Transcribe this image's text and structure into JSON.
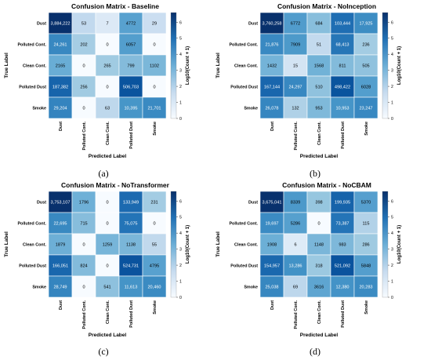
{
  "chart_data": [
    {
      "type": "heatmap",
      "title": "Confusion Matrix - Baseline",
      "caption": "(a)",
      "xlabel": "Predicted Label",
      "ylabel": "True Label",
      "x_categories": [
        "Dust",
        "Polluted Cont.",
        "Clean Cont.",
        "Polluted Dust",
        "Smoke"
      ],
      "y_categories": [
        "Dust",
        "Polluted Cont.",
        "Clean Cont.",
        "Polluted Dust",
        "Smoke"
      ],
      "values": [
        [
          3884222,
          53,
          7,
          4772,
          29
        ],
        [
          24261,
          202,
          0,
          6057,
          0
        ],
        [
          2165,
          0,
          265,
          799,
          1102
        ],
        [
          187382,
          256,
          0,
          506703,
          0
        ],
        [
          29204,
          0,
          63,
          10395,
          21701
        ]
      ],
      "labels": [
        [
          "3,884,222",
          "53",
          "7",
          "4772",
          "29"
        ],
        [
          "24,261",
          "202",
          "0",
          "6057",
          "0"
        ],
        [
          "2165",
          "0",
          "265",
          "799",
          "1102"
        ],
        [
          "187,382",
          "256",
          "0",
          "506,703",
          "0"
        ],
        [
          "29,204",
          "0",
          "63",
          "10,395",
          "21,701"
        ]
      ],
      "colorbar": {
        "label": "Log10(Count + 1)",
        "min": 0,
        "max": 6.6,
        "ticks": [
          "0",
          "1",
          "2",
          "3",
          "4",
          "5",
          "6"
        ]
      }
    },
    {
      "type": "heatmap",
      "title": "Confusion Matrix - NoInception",
      "caption": "(b)",
      "xlabel": "Predicted Label",
      "ylabel": "True Label",
      "x_categories": [
        "Dust",
        "Polluted Cont.",
        "Clean Cont.",
        "Polluted Dust",
        "Smoke"
      ],
      "y_categories": [
        "Dust",
        "Polluted Cont.",
        "Clean Cont.",
        "Polluted Dust",
        "Smoke"
      ],
      "values": [
        [
          3760258,
          6772,
          684,
          103444,
          17925
        ],
        [
          21876,
          7909,
          51,
          68413,
          236
        ],
        [
          1432,
          15,
          1568,
          811,
          505
        ],
        [
          167144,
          24297,
          510,
          498422,
          6028
        ],
        [
          26078,
          132,
          953,
          10953,
          23247
        ]
      ],
      "labels": [
        [
          "3,760,258",
          "6772",
          "684",
          "103,444",
          "17,925"
        ],
        [
          "21,876",
          "7909",
          "51",
          "68,413",
          "236"
        ],
        [
          "1432",
          "15",
          "1568",
          "811",
          "505"
        ],
        [
          "167,144",
          "24,297",
          "510",
          "498,422",
          "6028"
        ],
        [
          "26,078",
          "132",
          "953",
          "10,953",
          "23,247"
        ]
      ],
      "colorbar": {
        "label": "Log10(Count + 1)",
        "min": 0,
        "max": 6.6,
        "ticks": [
          "0",
          "1",
          "2",
          "3",
          "4",
          "5",
          "6"
        ]
      }
    },
    {
      "type": "heatmap",
      "title": "Confusion Matrix - NoTransformer",
      "caption": "(c)",
      "xlabel": "Predicted Label",
      "ylabel": "True Label",
      "x_categories": [
        "Dust",
        "Polluted Cont.",
        "Clean Cont.",
        "Polluted Dust",
        "Smoke"
      ],
      "y_categories": [
        "Dust",
        "Polluted Cont.",
        "Clean Cont.",
        "Polluted Dust",
        "Smoke"
      ],
      "values": [
        [
          3753107,
          1796,
          0,
          133949,
          231
        ],
        [
          22695,
          715,
          0,
          75075,
          0
        ],
        [
          1879,
          0,
          1259,
          1138,
          55
        ],
        [
          166051,
          824,
          0,
          524731,
          4795
        ],
        [
          28749,
          0,
          541,
          11613,
          20460
        ]
      ],
      "labels": [
        [
          "3,753,107",
          "1796",
          "0",
          "133,949",
          "231"
        ],
        [
          "22,695",
          "715",
          "0",
          "75,075",
          "0"
        ],
        [
          "1879",
          "0",
          "1259",
          "1138",
          "55"
        ],
        [
          "166,051",
          "824",
          "0",
          "524,731",
          "4795"
        ],
        [
          "28,749",
          "0",
          "541",
          "11,613",
          "20,460"
        ]
      ],
      "colorbar": {
        "label": "Log10(Count + 1)",
        "min": 0,
        "max": 6.6,
        "ticks": [
          "0",
          "1",
          "2",
          "3",
          "4",
          "5",
          "6"
        ]
      }
    },
    {
      "type": "heatmap",
      "title": "Confusion Matrix - NoCBAM",
      "caption": "(d)",
      "xlabel": "Predicted Label",
      "ylabel": "True Label",
      "x_categories": [
        "Dust",
        "Polluted Cont.",
        "Clean Cont.",
        "Polluted Dust",
        "Smoke"
      ],
      "y_categories": [
        "Dust",
        "Polluted Cont.",
        "Clean Cont.",
        "Polluted Dust",
        "Smoke"
      ],
      "values": [
        [
          3675041,
          8339,
          398,
          199935,
          5370
        ],
        [
          19697,
          5286,
          0,
          73387,
          115
        ],
        [
          1908,
          6,
          1148,
          983,
          286
        ],
        [
          154957,
          13286,
          318,
          521092,
          5848
        ],
        [
          25038,
          69,
          3616,
          12380,
          20283
        ]
      ],
      "labels": [
        [
          "3,675,041",
          "8339",
          "398",
          "199,935",
          "5370"
        ],
        [
          "19,697",
          "5286",
          "0",
          "73,387",
          "115"
        ],
        [
          "1908",
          "6",
          "1148",
          "983",
          "286"
        ],
        [
          "154,957",
          "13,286",
          "318",
          "521,092",
          "5848"
        ],
        [
          "25,038",
          "69",
          "3616",
          "12,380",
          "20,283"
        ]
      ],
      "colorbar": {
        "label": "Log10(Count + 1)",
        "min": 0,
        "max": 6.6,
        "ticks": [
          "0",
          "1",
          "2",
          "3",
          "4",
          "5",
          "6"
        ]
      }
    }
  ],
  "colors": {
    "cmap_low": "#f7fbff",
    "cmap_mid": "#6baed6",
    "cmap_high": "#08306b",
    "text_dark": "#000000",
    "text_light": "#ffffff"
  }
}
